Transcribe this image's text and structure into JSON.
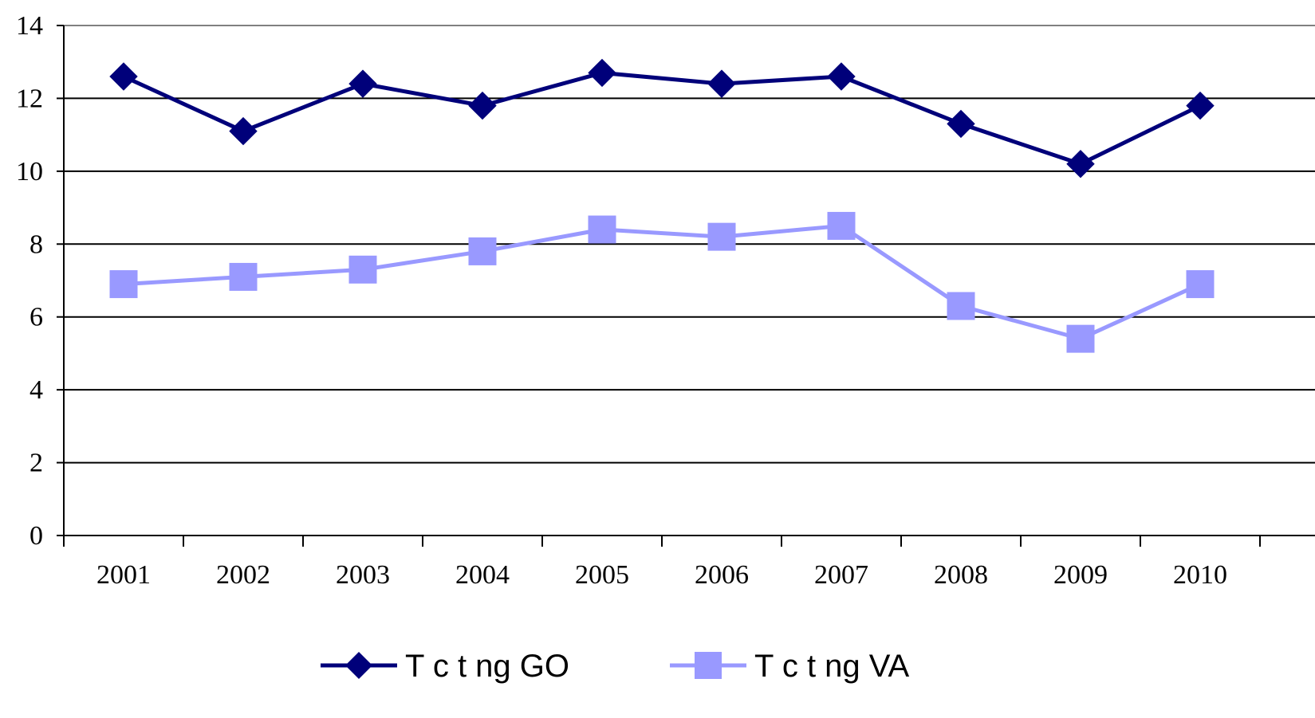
{
  "chart_data": {
    "type": "line",
    "categories": [
      "2001",
      "2002",
      "2003",
      "2004",
      "2005",
      "2006",
      "2007",
      "2008",
      "2009",
      "2010"
    ],
    "ylim": [
      0,
      14
    ],
    "yticks": [
      "0",
      "2",
      "4",
      "6",
      "8",
      "10",
      "12",
      "14"
    ],
    "grid": true,
    "legend_position": "bottom",
    "series": [
      {
        "name": "T c t ng GO",
        "color": "#00007a",
        "marker": "diamond",
        "values": [
          12.6,
          11.1,
          12.4,
          11.8,
          12.7,
          12.4,
          12.6,
          11.3,
          10.2,
          11.8
        ]
      },
      {
        "name": "T c t ng VA",
        "color": "#9999ff",
        "marker": "square",
        "values": [
          6.9,
          7.1,
          7.3,
          7.8,
          8.4,
          8.2,
          8.5,
          6.3,
          5.4,
          6.9
        ]
      }
    ]
  }
}
